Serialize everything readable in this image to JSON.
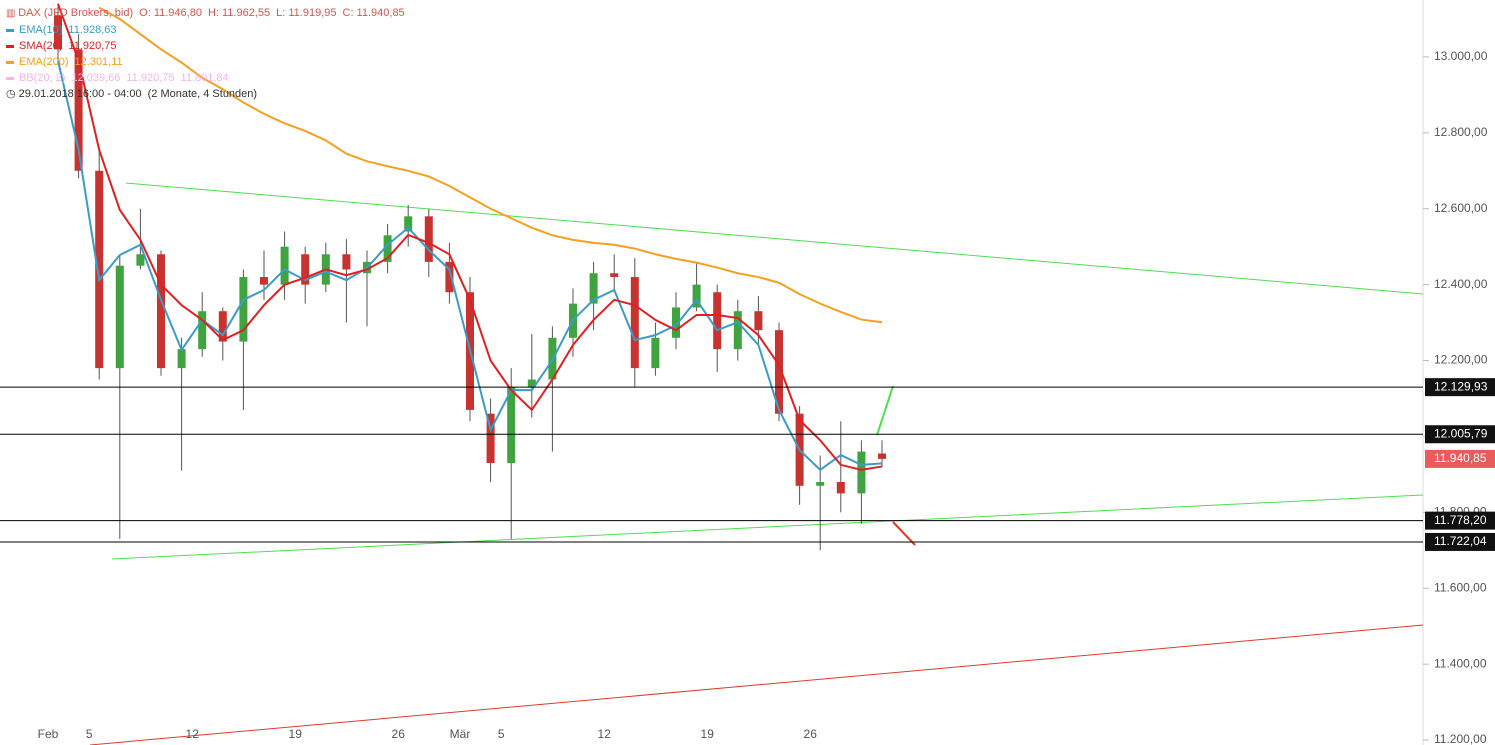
{
  "header": {
    "title": "DAX (JFD Brokers, bid)",
    "ohlc": [
      "O: 11.946,80",
      "H: 11.962,55",
      "L: 11.919,95",
      "C: 11.940,85"
    ],
    "bb": {
      "name": "BB(20, 2)",
      "labels": [
        "12.039,66",
        "11.920,75",
        "11.801,84"
      ],
      "color": "#f4b6e6"
    },
    "range": "29.01.2018 16:00 - 04:00",
    "period": "(2 Monate, 4 Stunden)"
  },
  "chart_data": {
    "type": "candlestick",
    "categories": [
      "Feb",
      null,
      "5",
      null,
      null,
      null,
      null,
      "12",
      null,
      null,
      null,
      null,
      "19",
      null,
      null,
      null,
      null,
      "26",
      null,
      null,
      "Mär",
      null,
      "5",
      null,
      null,
      null,
      null,
      "12",
      null,
      null,
      null,
      null,
      "19",
      null,
      null,
      null,
      null,
      "26",
      null,
      null,
      null
    ],
    "open": [
      13110,
      13020,
      12700,
      12180,
      12450,
      12480,
      12180,
      12230,
      12330,
      12250,
      12420,
      12400,
      12480,
      12400,
      12480,
      12430,
      12460,
      12540,
      12580,
      12460,
      12380,
      12060,
      11930,
      12130,
      12150,
      12260,
      12350,
      12430,
      12420,
      12180,
      12260,
      12340,
      12380,
      12230,
      12330,
      12280,
      12060,
      11870,
      11880,
      11850,
      11955
    ],
    "high": [
      13140,
      13060,
      12760,
      12480,
      12600,
      12490,
      12260,
      12380,
      12340,
      12440,
      12490,
      12540,
      12500,
      12510,
      12520,
      12490,
      12560,
      12610,
      12600,
      12510,
      12420,
      12100,
      12180,
      12270,
      12290,
      12390,
      12460,
      12480,
      12470,
      12300,
      12380,
      12460,
      12400,
      12360,
      12370,
      12300,
      12080,
      11950,
      12040,
      11990,
      11990
    ],
    "low": [
      12980,
      12680,
      12150,
      11730,
      12440,
      12160,
      11910,
      12210,
      12200,
      12070,
      12360,
      12360,
      12350,
      12380,
      12300,
      12290,
      12430,
      12500,
      12420,
      12350,
      12040,
      11880,
      11730,
      12050,
      11960,
      12210,
      12280,
      12380,
      12130,
      12160,
      12230,
      12330,
      12170,
      12200,
      12240,
      12040,
      11820,
      11700,
      11800,
      11770,
      11920
    ],
    "close": [
      13020,
      12700,
      12180,
      12450,
      12480,
      12180,
      12230,
      12330,
      12250,
      12420,
      12400,
      12500,
      12400,
      12480,
      12440,
      12460,
      12530,
      12580,
      12460,
      12380,
      12070,
      11930,
      12130,
      12150,
      12260,
      12350,
      12430,
      12420,
      12180,
      12260,
      12340,
      12400,
      12230,
      12330,
      12280,
      12060,
      11870,
      11880,
      11850,
      11960,
      11941
    ],
    "up_color": "#3fa33f",
    "down_color": "#c8322f",
    "series": [
      {
        "name": "EMA(10)",
        "color": "#3a9cc8",
        "last_label": "11.928,63",
        "values": [
          12990,
          12755,
          12412,
          12478,
          12505,
          12360,
          12228,
          12307,
          12267,
          12360,
          12386,
          12440,
          12412,
          12434,
          12412,
          12444,
          12505,
          12550,
          12491,
          12440,
          12228,
          12017,
          12122,
          12122,
          12201,
          12307,
          12360,
          12386,
          12254,
          12267,
          12293,
          12360,
          12280,
          12301,
          12241,
          12070,
          11964,
          11912,
          11951,
          11925,
          11929
        ]
      },
      {
        "name": "SMA(20)",
        "color": "#e02020",
        "last_label": "11.920,75",
        "values": [
          13140,
          12990,
          12755,
          12597,
          12518,
          12400,
          12346,
          12307,
          12254,
          12280,
          12346,
          12400,
          12418,
          12440,
          12425,
          12440,
          12470,
          12531,
          12510,
          12480,
          12360,
          12200,
          12122,
          12070,
          12150,
          12241,
          12307,
          12360,
          12346,
          12307,
          12280,
          12320,
          12320,
          12312,
          12267,
          12188,
          12043,
          11990,
          11925,
          11912,
          11921
        ]
      },
      {
        "name": "EMA(200)",
        "color": "#f5a020",
        "last_label": "12.301,11",
        "values": [
          null,
          null,
          13130,
          13100,
          13060,
          13020,
          12985,
          12945,
          12915,
          12880,
          12850,
          12825,
          12805,
          12780,
          12745,
          12725,
          12712,
          12700,
          12685,
          12660,
          12630,
          12600,
          12575,
          12550,
          12530,
          12518,
          12510,
          12505,
          12495,
          12480,
          12468,
          12458,
          12445,
          12430,
          12420,
          12405,
          12375,
          12350,
          12328,
          12308,
          12301
        ]
      }
    ],
    "levels": [
      {
        "value": 12129.93,
        "label": "12.129,93"
      },
      {
        "value": 12005.79,
        "label": "12.005,79"
      },
      {
        "value": 11778.2,
        "label": "11.778,20"
      },
      {
        "value": 11722.04,
        "label": "11.722,04"
      }
    ],
    "last_price": {
      "value": 11940.85,
      "label": "11.940,85",
      "color": "#e85c5c"
    },
    "ylim": [
      11187,
      13150
    ],
    "yticks": [
      {
        "value": 11200,
        "label": "11.200,00"
      },
      {
        "value": 11400,
        "label": "11.400,00"
      },
      {
        "value": 11600,
        "label": "11.600,00"
      },
      {
        "value": 11800,
        "label": "11.800,00"
      },
      {
        "value": 12000,
        "label": "12.000,00"
      },
      {
        "value": 12200,
        "label": "12.200,00"
      },
      {
        "value": 12400,
        "label": "12.400,00"
      },
      {
        "value": 12600,
        "label": "12.600,00"
      },
      {
        "value": 12800,
        "label": "12.800,00"
      },
      {
        "value": 13000,
        "label": "13.000,00"
      }
    ]
  }
}
